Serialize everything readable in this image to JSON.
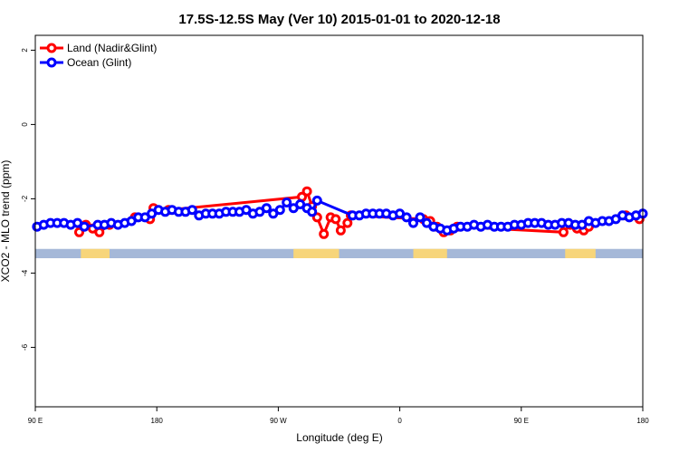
{
  "chart_data": {
    "type": "line",
    "title": "17.5S-12.5S May (Ver 10)   2015-01-01 to 2020-12-18",
    "xlabel": "Longitude (deg E)",
    "ylabel": "XCO2 - MLO trend (ppm)",
    "xlim": [
      90,
      450
    ],
    "ylim": [
      -7.6,
      2.4
    ],
    "x_ticks": [
      {
        "value": 90,
        "label": "90 E"
      },
      {
        "value": 162,
        "label": "180"
      },
      {
        "value": 234,
        "label": "90 W"
      },
      {
        "value": 306,
        "label": "0"
      },
      {
        "value": 378,
        "label": "90 E"
      },
      {
        "value": 450,
        "label": "180"
      }
    ],
    "y_ticks": [
      {
        "value": 2,
        "label": "2"
      },
      {
        "value": 0,
        "label": "0"
      },
      {
        "value": -2,
        "label": "-2"
      },
      {
        "value": -4,
        "label": "-4"
      },
      {
        "value": -6,
        "label": "-6"
      }
    ],
    "grid": false,
    "legend_position": "top-left",
    "land_band": {
      "y_top": -3.35,
      "y_bottom": -3.6,
      "ocean_color": "#a5b8d8",
      "land_color": "#f7d57a",
      "land_segments": [
        [
          117,
          134
        ],
        [
          243,
          270
        ],
        [
          314,
          334
        ],
        [
          404,
          422
        ]
      ]
    },
    "series": [
      {
        "name": "Land (Nadir&Glint)",
        "color": "#ff0000",
        "points": [
          [
            116,
            -2.9
          ],
          [
            120,
            -2.7
          ],
          [
            124,
            -2.8
          ],
          [
            128,
            -2.9
          ],
          [
            134,
            -2.7
          ],
          [
            149,
            -2.5
          ],
          [
            158,
            -2.55
          ],
          [
            160,
            -2.25
          ],
          [
            169,
            -2.3
          ],
          [
            248,
            -1.95
          ],
          [
            251,
            -1.8
          ],
          [
            254,
            -2.2
          ],
          [
            257,
            -2.5
          ],
          [
            261,
            -2.95
          ],
          [
            265,
            -2.5
          ],
          [
            268,
            -2.55
          ],
          [
            271,
            -2.85
          ],
          [
            275,
            -2.65
          ],
          [
            277,
            -2.45
          ],
          [
            320,
            -2.55
          ],
          [
            324,
            -2.6
          ],
          [
            328,
            -2.75
          ],
          [
            332,
            -2.9
          ],
          [
            336,
            -2.85
          ],
          [
            340,
            -2.75
          ],
          [
            403,
            -2.9
          ],
          [
            407,
            -2.7
          ],
          [
            411,
            -2.8
          ],
          [
            415,
            -2.85
          ],
          [
            418,
            -2.75
          ],
          [
            440,
            -2.45
          ],
          [
            448,
            -2.55
          ]
        ]
      },
      {
        "name": "Ocean (Glint)",
        "color": "#0000ff",
        "points": [
          [
            91,
            -2.75
          ],
          [
            95,
            -2.7
          ],
          [
            99,
            -2.65
          ],
          [
            103,
            -2.65
          ],
          [
            107,
            -2.65
          ],
          [
            111,
            -2.7
          ],
          [
            115,
            -2.65
          ],
          [
            119,
            -2.75
          ],
          [
            127,
            -2.7
          ],
          [
            131,
            -2.7
          ],
          [
            135,
            -2.65
          ],
          [
            139,
            -2.7
          ],
          [
            143,
            -2.65
          ],
          [
            147,
            -2.6
          ],
          [
            151,
            -2.5
          ],
          [
            155,
            -2.5
          ],
          [
            159,
            -2.4
          ],
          [
            163,
            -2.3
          ],
          [
            167,
            -2.35
          ],
          [
            171,
            -2.3
          ],
          [
            175,
            -2.35
          ],
          [
            179,
            -2.35
          ],
          [
            183,
            -2.3
          ],
          [
            187,
            -2.45
          ],
          [
            191,
            -2.4
          ],
          [
            195,
            -2.4
          ],
          [
            199,
            -2.4
          ],
          [
            203,
            -2.35
          ],
          [
            207,
            -2.35
          ],
          [
            211,
            -2.35
          ],
          [
            215,
            -2.3
          ],
          [
            219,
            -2.4
          ],
          [
            223,
            -2.35
          ],
          [
            227,
            -2.25
          ],
          [
            231,
            -2.4
          ],
          [
            235,
            -2.3
          ],
          [
            239,
            -2.1
          ],
          [
            243,
            -2.25
          ],
          [
            247,
            -2.15
          ],
          [
            251,
            -2.25
          ],
          [
            254,
            -2.35
          ],
          [
            257,
            -2.05
          ],
          [
            278,
            -2.45
          ],
          [
            282,
            -2.45
          ],
          [
            286,
            -2.4
          ],
          [
            290,
            -2.4
          ],
          [
            294,
            -2.4
          ],
          [
            298,
            -2.4
          ],
          [
            302,
            -2.45
          ],
          [
            306,
            -2.4
          ],
          [
            310,
            -2.5
          ],
          [
            314,
            -2.65
          ],
          [
            318,
            -2.5
          ],
          [
            322,
            -2.65
          ],
          [
            326,
            -2.75
          ],
          [
            330,
            -2.8
          ],
          [
            334,
            -2.85
          ],
          [
            338,
            -2.8
          ],
          [
            342,
            -2.75
          ],
          [
            346,
            -2.75
          ],
          [
            350,
            -2.7
          ],
          [
            354,
            -2.75
          ],
          [
            358,
            -2.7
          ],
          [
            362,
            -2.75
          ],
          [
            366,
            -2.75
          ],
          [
            370,
            -2.75
          ],
          [
            374,
            -2.7
          ],
          [
            378,
            -2.7
          ],
          [
            382,
            -2.65
          ],
          [
            386,
            -2.65
          ],
          [
            390,
            -2.65
          ],
          [
            394,
            -2.7
          ],
          [
            398,
            -2.7
          ],
          [
            402,
            -2.65
          ],
          [
            406,
            -2.65
          ],
          [
            410,
            -2.7
          ],
          [
            414,
            -2.7
          ],
          [
            418,
            -2.6
          ],
          [
            422,
            -2.65
          ],
          [
            426,
            -2.6
          ],
          [
            430,
            -2.6
          ],
          [
            434,
            -2.55
          ],
          [
            438,
            -2.45
          ],
          [
            442,
            -2.5
          ],
          [
            446,
            -2.45
          ],
          [
            450,
            -2.4
          ]
        ]
      }
    ]
  }
}
